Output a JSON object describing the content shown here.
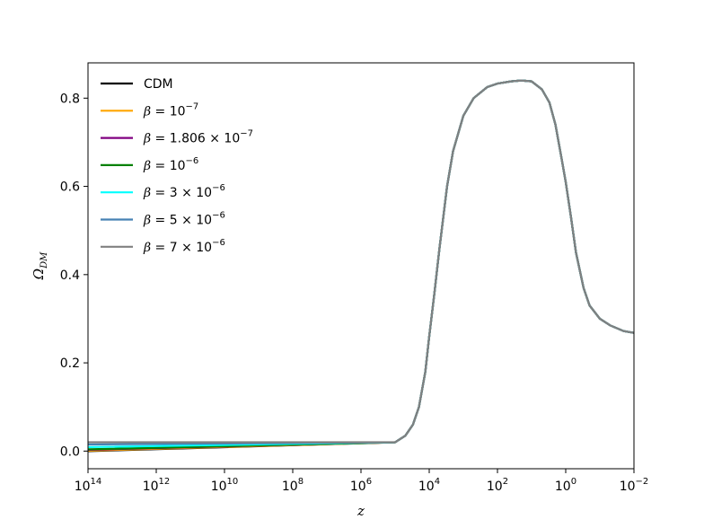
{
  "chart_data": {
    "type": "line",
    "title": "",
    "xlabel": "z",
    "ylabel": "Ω_DM",
    "x_scale": "log",
    "x_reversed": true,
    "xlim": [
      100000000000000.0,
      0.01
    ],
    "ylim": [
      -0.04,
      0.88
    ],
    "x_ticks": [
      {
        "value": 100000000000000.0,
        "base": "10",
        "exp": "14"
      },
      {
        "value": 1000000000000.0,
        "base": "10",
        "exp": "12"
      },
      {
        "value": 10000000000.0,
        "base": "10",
        "exp": "10"
      },
      {
        "value": 100000000.0,
        "base": "10",
        "exp": "8"
      },
      {
        "value": 1000000.0,
        "base": "10",
        "exp": "6"
      },
      {
        "value": 10000.0,
        "base": "10",
        "exp": "4"
      },
      {
        "value": 100,
        "base": "10",
        "exp": "2"
      },
      {
        "value": 1,
        "base": "10",
        "exp": "0"
      },
      {
        "value": 0.01,
        "base": "10",
        "exp": "−2"
      }
    ],
    "y_ticks": [
      {
        "value": 0.0,
        "label": "0.0"
      },
      {
        "value": 0.2,
        "label": "0.2"
      },
      {
        "value": 0.4,
        "label": "0.4"
      },
      {
        "value": 0.6,
        "label": "0.6"
      },
      {
        "value": 0.8,
        "label": "0.8"
      }
    ],
    "grid": false,
    "legend_position": "top-left",
    "shared_curve": [
      [
        100000.0,
        0.02
      ],
      [
        50000.0,
        0.035
      ],
      [
        30000.0,
        0.06
      ],
      [
        20000.0,
        0.1
      ],
      [
        13000.0,
        0.18
      ],
      [
        10000.0,
        0.26
      ],
      [
        7000.0,
        0.36
      ],
      [
        5000.0,
        0.46
      ],
      [
        3000.0,
        0.6
      ],
      [
        2000.0,
        0.68
      ],
      [
        1000.0,
        0.76
      ],
      [
        500,
        0.8
      ],
      [
        200,
        0.825
      ],
      [
        100,
        0.833
      ],
      [
        40,
        0.838
      ],
      [
        20,
        0.84
      ],
      [
        10,
        0.838
      ],
      [
        5,
        0.82
      ],
      [
        3,
        0.79
      ],
      [
        2,
        0.74
      ],
      [
        1.3,
        0.66
      ],
      [
        1,
        0.61
      ],
      [
        0.7,
        0.53
      ],
      [
        0.5,
        0.45
      ],
      [
        0.3,
        0.37
      ],
      [
        0.2,
        0.33
      ],
      [
        0.1,
        0.3
      ],
      [
        0.05,
        0.285
      ],
      [
        0.02,
        0.272
      ],
      [
        0.01,
        0.268
      ]
    ],
    "series": [
      {
        "name": "CDM",
        "color": "#000000",
        "plateau": 0.0,
        "legend": [
          {
            "t": "CDM"
          }
        ]
      },
      {
        "name": "β = 10^−7",
        "color": "#ffa500",
        "plateau": 0.001,
        "legend": [
          {
            "t": "β",
            "c": "it"
          },
          {
            "t": " = 10"
          },
          {
            "t": "−7",
            "s": "sup"
          }
        ]
      },
      {
        "name": "β = 1.806 × 10^−7",
        "color": "#800080",
        "plateau": 0.003,
        "legend": [
          {
            "t": "β",
            "c": "it"
          },
          {
            "t": " = 1.806 × 10"
          },
          {
            "t": "−7",
            "s": "sup"
          }
        ]
      },
      {
        "name": "β = 10^−6",
        "color": "#008000",
        "plateau": 0.004,
        "legend": [
          {
            "t": "β",
            "c": "it"
          },
          {
            "t": " = 10"
          },
          {
            "t": "−6",
            "s": "sup"
          }
        ]
      },
      {
        "name": "β = 3 × 10^−6",
        "color": "#00ffff",
        "plateau": 0.009,
        "legend": [
          {
            "t": "β",
            "c": "it"
          },
          {
            "t": " = 3 × 10"
          },
          {
            "t": "−6",
            "s": "sup"
          }
        ]
      },
      {
        "name": "β = 5 × 10^−6",
        "color": "#4682b4",
        "plateau": 0.015,
        "legend": [
          {
            "t": "β",
            "c": "it"
          },
          {
            "t": " = 5 × 10"
          },
          {
            "t": "−6",
            "s": "sup"
          }
        ]
      },
      {
        "name": "β = 7 × 10^−6",
        "color": "#808080",
        "plateau": 0.02,
        "legend": [
          {
            "t": "β",
            "c": "it"
          },
          {
            "t": " = 7 × 10"
          },
          {
            "t": "−6",
            "s": "sup"
          }
        ]
      }
    ]
  }
}
